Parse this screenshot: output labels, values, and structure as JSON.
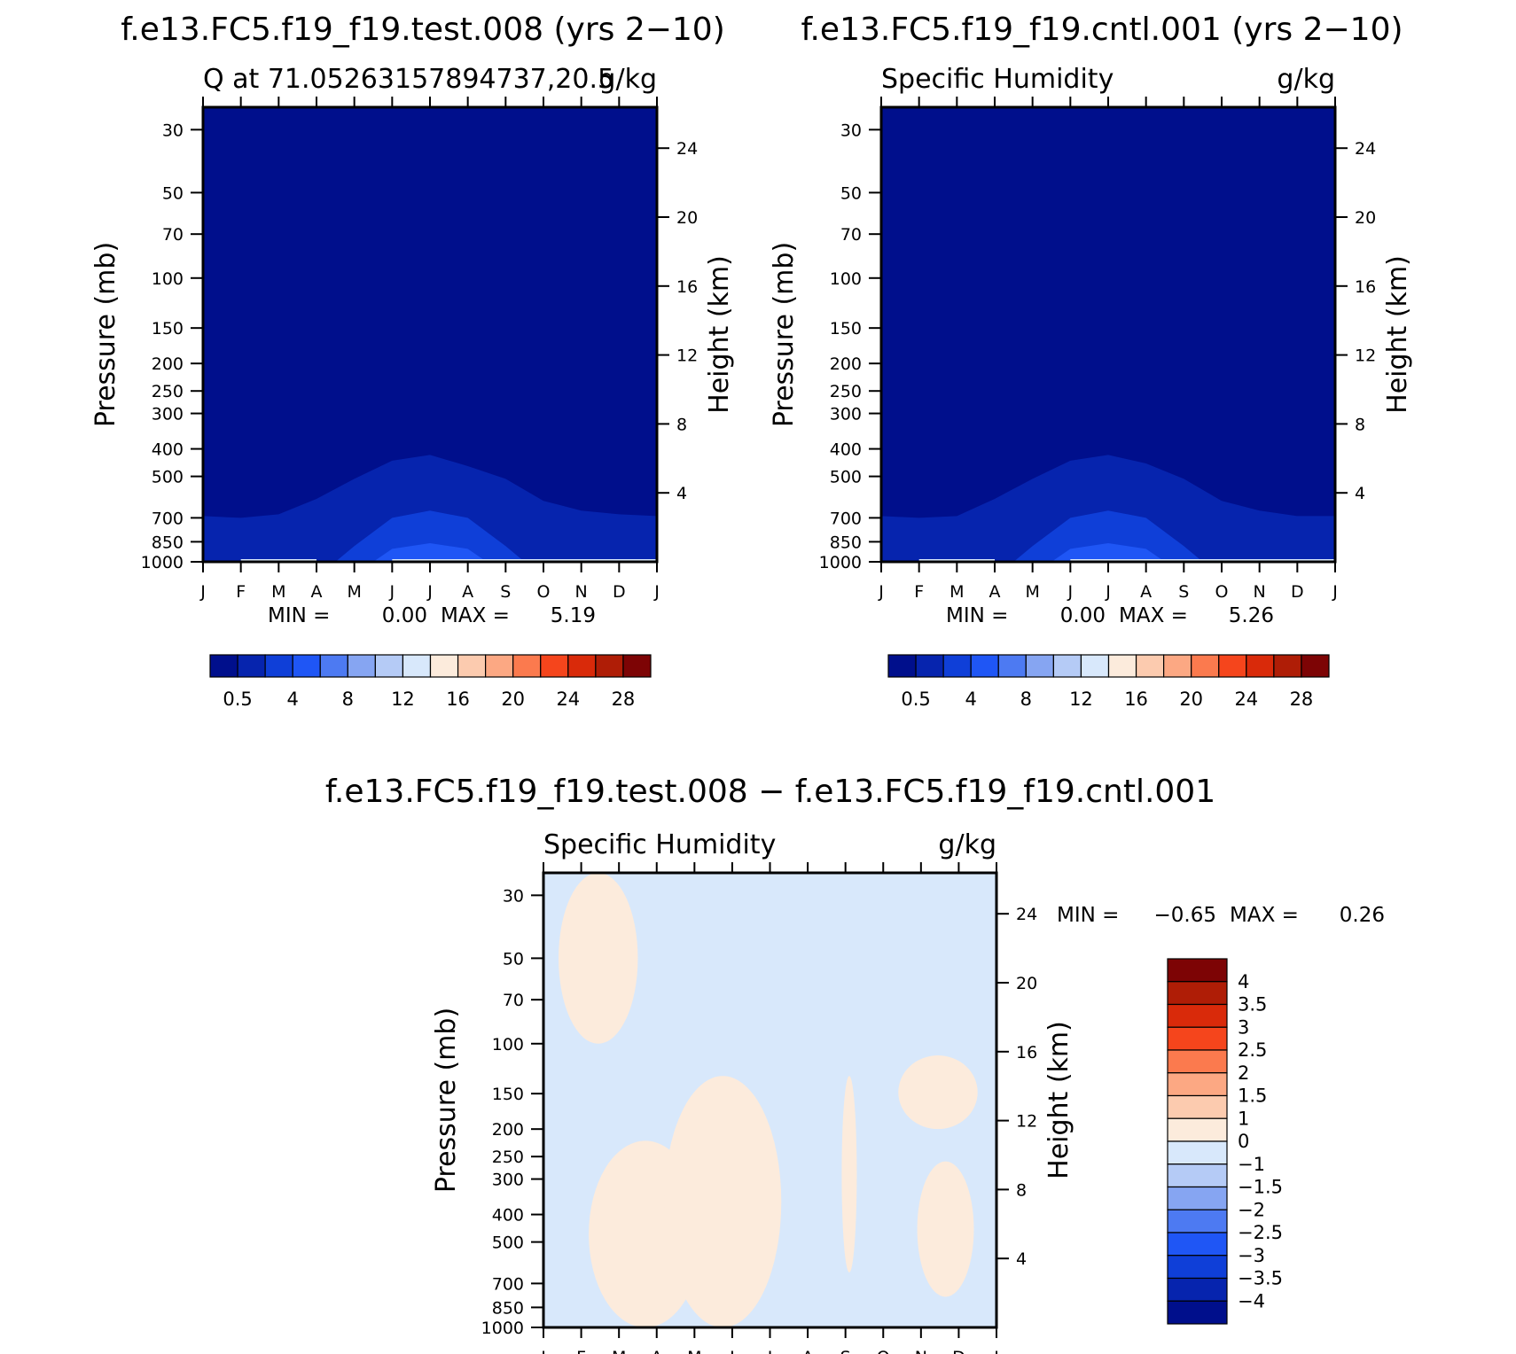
{
  "figure": {
    "title_test": "f.e13.FC5.f19_f19.test.008 (yrs 2−10)",
    "title_cntl": "f.e13.FC5.f19_f19.cntl.001 (yrs 2−10)",
    "title_diff": "f.e13.FC5.f19_f19.test.008 − f.e13.FC5.f19_f19.cntl.001"
  },
  "colors": {
    "abs_scale": [
      "#000f8c",
      "#0624ae",
      "#0f3fd8",
      "#1f56f5",
      "#4d7af2",
      "#86a5f2",
      "#b5cbf6",
      "#d8e8fb",
      "#fcebdc",
      "#fccbaf",
      "#fca883",
      "#fb7a4e",
      "#f5451c",
      "#d92a0a",
      "#af1d06",
      "#7d0405"
    ],
    "diff_scale": [
      "#000f8c",
      "#0624ae",
      "#0f3fd8",
      "#1f56f5",
      "#4d7af2",
      "#86a5f2",
      "#b5cbf6",
      "#d8e8fb",
      "#fcebdc",
      "#fccbaf",
      "#fca883",
      "#fb7a4e",
      "#f5451c",
      "#d92a0a",
      "#af1d06",
      "#7d0405"
    ]
  },
  "chart_data": [
    {
      "type": "heatmap",
      "panel": "test",
      "title_left": "Q at 71.05263157894737,20.5",
      "title_right": "g/kg",
      "xlabel": "",
      "ylabel": "Pressure (mb)",
      "ylabel_right": "Height (km)",
      "x_ticks": [
        "J",
        "F",
        "M",
        "A",
        "M",
        "J",
        "J",
        "A",
        "S",
        "O",
        "N",
        "D",
        "J"
      ],
      "y_ticks": [
        30,
        50,
        70,
        100,
        150,
        200,
        250,
        300,
        400,
        500,
        700,
        850,
        1000
      ],
      "y_ticks_right": [
        4,
        8,
        12,
        16,
        20,
        24
      ],
      "ylim": [
        1000,
        25
      ],
      "y_scale": "log",
      "stats": {
        "min_label": "MIN =",
        "min": "0.00",
        "max_label": "MAX =",
        "max": "5.19"
      },
      "colorbar_labels": [
        "0.5",
        "4",
        "8",
        "12",
        "16",
        "20",
        "24",
        "28"
      ],
      "contours": [
        {
          "level": "0.5–1",
          "pressure_top_by_month": [
            690,
            700,
            680,
            600,
            510,
            440,
            420,
            460,
            510,
            610,
            660,
            680,
            690
          ]
        },
        {
          "level": "1–2",
          "pressure_top_by_month": [
            null,
            null,
            null,
            null,
            880,
            700,
            660,
            700,
            880,
            null,
            null,
            null,
            null
          ]
        },
        {
          "level": "2–3",
          "pressure_top_by_month": [
            null,
            null,
            null,
            null,
            null,
            900,
            860,
            900,
            null,
            null,
            null,
            null,
            null
          ]
        }
      ]
    },
    {
      "type": "heatmap",
      "panel": "cntl",
      "title_left": "Specific Humidity",
      "title_right": "g/kg",
      "xlabel": "",
      "ylabel": "Pressure (mb)",
      "ylabel_right": "Height (km)",
      "x_ticks": [
        "J",
        "F",
        "M",
        "A",
        "M",
        "J",
        "J",
        "A",
        "S",
        "O",
        "N",
        "D",
        "J"
      ],
      "y_ticks": [
        30,
        50,
        70,
        100,
        150,
        200,
        250,
        300,
        400,
        500,
        700,
        850,
        1000
      ],
      "y_ticks_right": [
        4,
        8,
        12,
        16,
        20,
        24
      ],
      "ylim": [
        1000,
        25
      ],
      "y_scale": "log",
      "stats": {
        "min_label": "MIN =",
        "min": "0.00",
        "max_label": "MAX =",
        "max": "5.26"
      },
      "colorbar_labels": [
        "0.5",
        "4",
        "8",
        "12",
        "16",
        "20",
        "24",
        "28"
      ],
      "contours": [
        {
          "level": "0.5–1",
          "pressure_top_by_month": [
            690,
            700,
            690,
            600,
            510,
            440,
            420,
            450,
            510,
            610,
            660,
            690,
            690
          ]
        },
        {
          "level": "1–2",
          "pressure_top_by_month": [
            null,
            null,
            null,
            null,
            880,
            700,
            660,
            700,
            880,
            null,
            null,
            null,
            null
          ]
        },
        {
          "level": "2–3",
          "pressure_top_by_month": [
            null,
            null,
            null,
            null,
            null,
            900,
            860,
            900,
            null,
            null,
            null,
            null,
            null
          ]
        }
      ]
    },
    {
      "type": "heatmap",
      "panel": "diff",
      "title_left": "Specific Humidity",
      "title_right": "g/kg",
      "xlabel": "",
      "ylabel": "Pressure (mb)",
      "ylabel_right": "Height (km)",
      "x_ticks": [
        "J",
        "F",
        "M",
        "A",
        "M",
        "J",
        "J",
        "A",
        "S",
        "O",
        "N",
        "D",
        "J"
      ],
      "y_ticks": [
        30,
        50,
        70,
        100,
        150,
        200,
        250,
        300,
        400,
        500,
        700,
        850,
        1000
      ],
      "y_ticks_right": [
        4,
        8,
        12,
        16,
        20,
        24
      ],
      "ylim": [
        1000,
        25
      ],
      "y_scale": "log",
      "stats": {
        "min_label": "MIN =",
        "min": "−0.65",
        "max_label": "MAX =",
        "max": "0.26"
      },
      "colorbar_labels": [
        "4",
        "3.5",
        "3",
        "2.5",
        "2",
        "1.5",
        "1",
        "0",
        "−1",
        "−1.5",
        "−2",
        "−2.5",
        "−3",
        "−3.5",
        "−4"
      ],
      "positive_regions": [
        {
          "month_range": [
            0.4,
            2.5
          ],
          "pressure_range": [
            25,
            100
          ]
        },
        {
          "month_range": [
            1.2,
            4.2
          ],
          "pressure_range": [
            220,
            1000
          ]
        },
        {
          "month_range": [
            3.2,
            6.3
          ],
          "pressure_range": [
            130,
            1000
          ]
        },
        {
          "month_range": [
            7.9,
            8.3
          ],
          "pressure_range": [
            130,
            640
          ]
        },
        {
          "month_range": [
            9.4,
            11.5
          ],
          "pressure_range": [
            110,
            200
          ]
        },
        {
          "month_range": [
            9.9,
            11.4
          ],
          "pressure_range": [
            260,
            780
          ]
        }
      ]
    }
  ]
}
